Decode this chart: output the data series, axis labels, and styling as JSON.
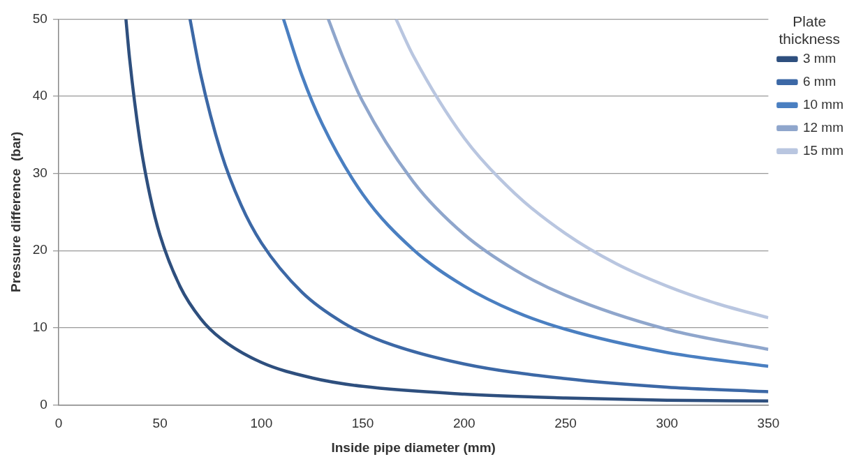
{
  "chart_data": {
    "type": "line",
    "xlabel": "Inside pipe diameter (mm)",
    "ylabel": "Pressure difference  (bar)",
    "legend_title": "Plate thickness",
    "xlim": [
      0,
      350
    ],
    "xticks": [
      0,
      50,
      100,
      150,
      200,
      250,
      300,
      350
    ],
    "ylim": [
      0,
      50
    ],
    "yticks": [
      0,
      10,
      20,
      30,
      40,
      50
    ],
    "grid": "y",
    "legend": "right",
    "marker": "none",
    "line_style": "solid",
    "series": [
      {
        "name": "3 mm",
        "color": "#2e4f7e",
        "x": [
          33.2,
          35,
          40,
          45,
          50,
          60,
          70,
          80,
          100,
          125,
          150,
          200,
          250,
          300,
          350
        ],
        "values": [
          50,
          44.9,
          34.4,
          27.2,
          22.0,
          15.3,
          11.2,
          8.6,
          5.5,
          3.5,
          2.4,
          1.4,
          0.9,
          0.6,
          0.5
        ]
      },
      {
        "name": "6 mm",
        "color": "#3c68a6",
        "x": [
          64.8,
          70,
          80,
          90,
          100,
          120,
          140,
          160,
          200,
          250,
          300,
          350
        ],
        "values": [
          50,
          42.9,
          32.8,
          25.9,
          21.0,
          14.6,
          10.7,
          8.2,
          5.3,
          3.4,
          2.3,
          1.7
        ]
      },
      {
        "name": "10 mm",
        "color": "#4a7fc1",
        "x": [
          110.9,
          120,
          130,
          150,
          175,
          200,
          225,
          250,
          300,
          350
        ],
        "values": [
          50,
          42.7,
          36.4,
          27.3,
          20.1,
          15.4,
          12.1,
          9.8,
          6.8,
          5.0
        ]
      },
      {
        "name": "12 mm",
        "color": "#8fa6cc",
        "x": [
          133,
          140,
          150,
          175,
          200,
          225,
          250,
          300,
          350
        ],
        "values": [
          50,
          45.2,
          39.3,
          28.9,
          22.1,
          17.5,
          14.2,
          9.8,
          7.2
        ]
      },
      {
        "name": "15 mm",
        "color": "#b9c6e0",
        "x": [
          166.4,
          175,
          200,
          225,
          250,
          275,
          300,
          325,
          350
        ],
        "values": [
          50,
          45.2,
          34.6,
          27.4,
          22.2,
          18.3,
          15.4,
          13.1,
          11.3
        ]
      }
    ]
  }
}
